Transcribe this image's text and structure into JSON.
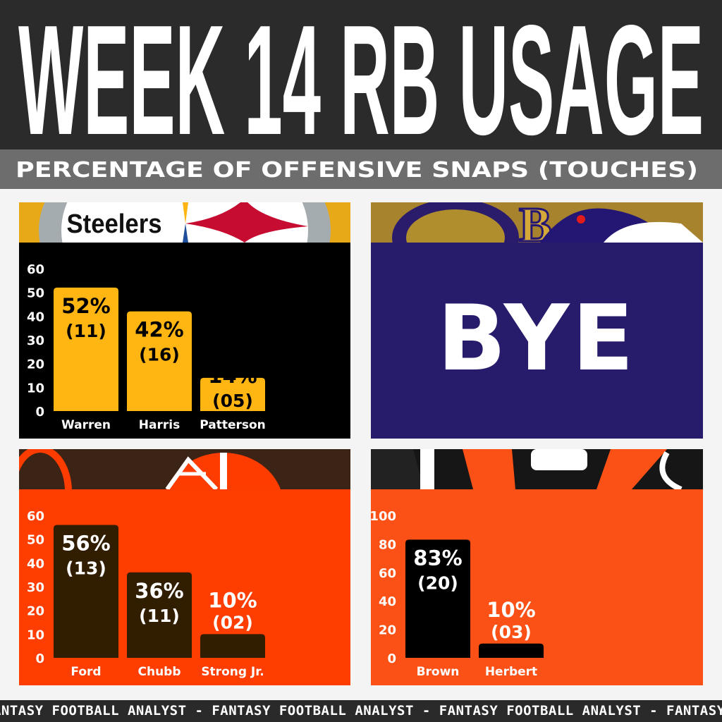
{
  "header": {
    "title": "WEEK 14 RB USAGE",
    "subtitle": "PERCENTAGE OF OFFENSIVE SNAPS (TOUCHES)"
  },
  "footer": {
    "ticker": "FANTASY FOOTBALL ANALYST - FANTASY FOOTBALL ANALYST - FANTASY FOOTBALL ANALYST - FANTASY FOOTBALL"
  },
  "teams": {
    "steelers": {
      "logo_text": "Steelers"
    },
    "ravens": {
      "bye_label": "BYE"
    }
  },
  "colors": {
    "steelers_bg": "#000000",
    "steelers_bar": "#ffb612",
    "steelers_text": "#000000",
    "ravens_bg": "#271b6b",
    "browns_bg": "#fe3d00",
    "browns_bar": "#311d00",
    "browns_text": "#ffffff",
    "bengals_bg": "#fb5016",
    "bengals_bar": "#000000",
    "bengals_text": "#ffffff"
  },
  "chart_data": [
    {
      "type": "bar",
      "team": "Steelers",
      "ylim": [
        0,
        60
      ],
      "yticks": [
        "0",
        "10",
        "20",
        "30",
        "40",
        "50",
        "60"
      ],
      "categories": [
        "Warren",
        "Harris",
        "Patterson"
      ],
      "values": [
        52,
        42,
        14
      ],
      "touches": [
        "(11)",
        "(16)",
        "(05)"
      ],
      "labels": [
        "52%",
        "42%",
        "14%"
      ]
    },
    {
      "type": "bar",
      "team": "Browns",
      "ylim": [
        0,
        60
      ],
      "yticks": [
        "0",
        "10",
        "20",
        "30",
        "40",
        "50",
        "60"
      ],
      "categories": [
        "Ford",
        "Chubb",
        "Strong Jr."
      ],
      "values": [
        56,
        36,
        10
      ],
      "touches": [
        "(13)",
        "(11)",
        "(02)"
      ],
      "labels": [
        "56%",
        "36%",
        "10%"
      ]
    },
    {
      "type": "bar",
      "team": "Bengals",
      "ylim": [
        0,
        100
      ],
      "yticks": [
        "0",
        "20",
        "40",
        "60",
        "80",
        "100"
      ],
      "categories": [
        "Brown",
        "Herbert"
      ],
      "values": [
        83,
        10
      ],
      "touches": [
        "(20)",
        "(03)"
      ],
      "labels": [
        "83%",
        "10%"
      ]
    }
  ]
}
